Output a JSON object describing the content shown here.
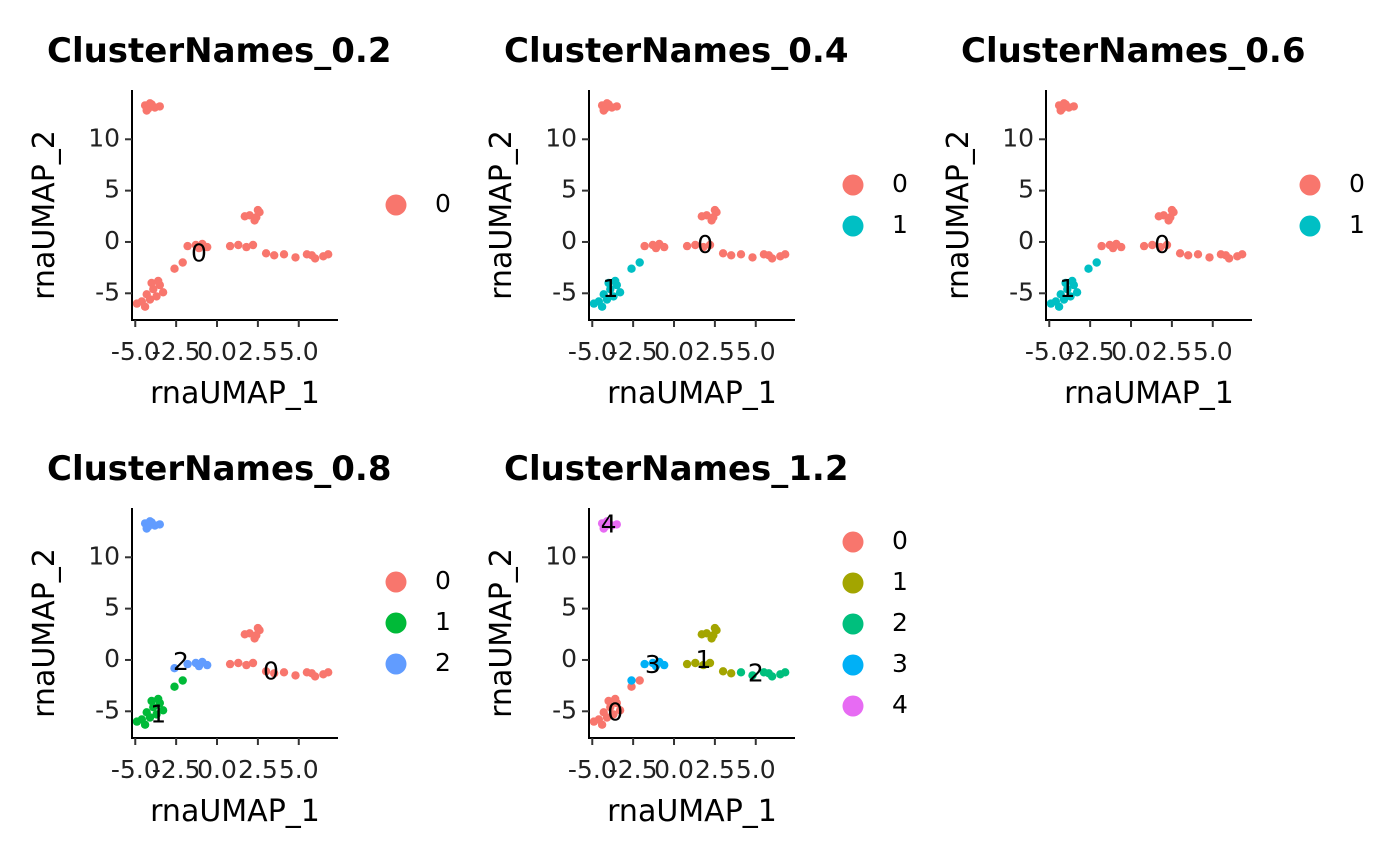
{
  "chart_data": [
    {
      "type": "scatter",
      "title": "ClusterNames_0.2",
      "xlabel": "rnaUMAP_1",
      "ylabel": "rnaUMAP_2",
      "xticks": [
        "-5.0",
        "-2.5",
        "0.0",
        "2.5",
        "5.0"
      ],
      "yticks": [
        "-5",
        "0",
        "5",
        "10"
      ],
      "xlim": [
        -5.2,
        7.4
      ],
      "ylim": [
        -7.6,
        14.8
      ],
      "grid": false,
      "legend": "right",
      "series": [
        {
          "name": "0",
          "color": "#F8766D",
          "label_pos": [
            -1.1,
            -1.2
          ],
          "points": [
            [
              -4.4,
              13.3
            ],
            [
              -4.2,
              13.0
            ],
            [
              -4.0,
              13.4
            ],
            [
              -3.8,
              13.1
            ],
            [
              -4.3,
              12.8
            ],
            [
              -3.5,
              13.2
            ],
            [
              -4.1,
              13.5
            ],
            [
              -4.6,
              -5.8
            ],
            [
              -4.9,
              -6.0
            ],
            [
              -4.4,
              -6.3
            ],
            [
              -4.1,
              -5.6
            ],
            [
              -4.3,
              -5.1
            ],
            [
              -3.7,
              -5.3
            ],
            [
              -3.9,
              -4.6
            ],
            [
              -3.5,
              -4.2
            ],
            [
              -3.3,
              -4.9
            ],
            [
              -4.0,
              -4.0
            ],
            [
              -3.6,
              -3.8
            ],
            [
              -2.6,
              -2.6
            ],
            [
              -2.1,
              -2.0
            ],
            [
              -1.8,
              -0.4
            ],
            [
              -1.3,
              -0.3
            ],
            [
              -1.1,
              -0.6
            ],
            [
              -0.6,
              -0.5
            ],
            [
              -0.9,
              -0.2
            ],
            [
              0.8,
              -0.4
            ],
            [
              1.3,
              -0.3
            ],
            [
              1.8,
              -0.5
            ],
            [
              2.2,
              -0.3
            ],
            [
              2.0,
              2.6
            ],
            [
              2.3,
              2.1
            ],
            [
              2.6,
              2.9
            ],
            [
              2.4,
              2.4
            ],
            [
              1.7,
              2.5
            ],
            [
              2.5,
              3.1
            ],
            [
              3.0,
              -1.1
            ],
            [
              3.5,
              -1.3
            ],
            [
              4.1,
              -1.2
            ],
            [
              4.8,
              -1.5
            ],
            [
              5.5,
              -1.2
            ],
            [
              6.0,
              -1.6
            ],
            [
              6.5,
              -1.4
            ],
            [
              6.8,
              -1.2
            ],
            [
              5.8,
              -1.3
            ]
          ]
        }
      ]
    },
    {
      "type": "scatter",
      "title": "ClusterNames_0.4",
      "xlabel": "rnaUMAP_1",
      "ylabel": "rnaUMAP_2",
      "xticks": [
        "-5.0",
        "-2.5",
        "0.0",
        "2.5",
        "5.0"
      ],
      "yticks": [
        "-5",
        "0",
        "5",
        "10"
      ],
      "xlim": [
        -5.2,
        7.4
      ],
      "ylim": [
        -7.6,
        14.8
      ],
      "grid": false,
      "legend": "right",
      "series": [
        {
          "name": "0",
          "color": "#F8766D",
          "label_pos": [
            1.9,
            -0.4
          ],
          "points": [
            [
              -4.4,
              13.3
            ],
            [
              -4.2,
              13.0
            ],
            [
              -4.0,
              13.4
            ],
            [
              -3.8,
              13.1
            ],
            [
              -4.3,
              12.8
            ],
            [
              -3.5,
              13.2
            ],
            [
              -4.1,
              13.5
            ],
            [
              -1.8,
              -0.4
            ],
            [
              -1.3,
              -0.3
            ],
            [
              -1.1,
              -0.6
            ],
            [
              -0.6,
              -0.5
            ],
            [
              -0.9,
              -0.2
            ],
            [
              0.8,
              -0.4
            ],
            [
              1.3,
              -0.3
            ],
            [
              1.8,
              -0.5
            ],
            [
              2.2,
              -0.3
            ],
            [
              2.0,
              2.6
            ],
            [
              2.3,
              2.1
            ],
            [
              2.6,
              2.9
            ],
            [
              2.4,
              2.4
            ],
            [
              1.7,
              2.5
            ],
            [
              2.5,
              3.1
            ],
            [
              3.0,
              -1.1
            ],
            [
              3.5,
              -1.3
            ],
            [
              4.1,
              -1.2
            ],
            [
              4.8,
              -1.5
            ],
            [
              5.5,
              -1.2
            ],
            [
              6.0,
              -1.6
            ],
            [
              6.5,
              -1.4
            ],
            [
              6.8,
              -1.2
            ],
            [
              5.8,
              -1.3
            ]
          ]
        },
        {
          "name": "1",
          "color": "#00BFC4",
          "label_pos": [
            -3.9,
            -4.7
          ],
          "points": [
            [
              -4.6,
              -5.8
            ],
            [
              -4.9,
              -6.0
            ],
            [
              -4.4,
              -6.3
            ],
            [
              -4.1,
              -5.6
            ],
            [
              -4.3,
              -5.1
            ],
            [
              -3.7,
              -5.3
            ],
            [
              -3.9,
              -4.6
            ],
            [
              -3.5,
              -4.2
            ],
            [
              -3.3,
              -4.9
            ],
            [
              -4.0,
              -4.0
            ],
            [
              -3.6,
              -3.8
            ],
            [
              -2.6,
              -2.6
            ],
            [
              -2.1,
              -2.0
            ]
          ]
        }
      ]
    },
    {
      "type": "scatter",
      "title": "ClusterNames_0.6",
      "xlabel": "rnaUMAP_1",
      "ylabel": "rnaUMAP_2",
      "xticks": [
        "-5.0",
        "-2.5",
        "0.0",
        "2.5",
        "5.0"
      ],
      "yticks": [
        "-5",
        "0",
        "5",
        "10"
      ],
      "xlim": [
        -5.2,
        7.4
      ],
      "ylim": [
        -7.6,
        14.8
      ],
      "grid": false,
      "legend": "right",
      "series": [
        {
          "name": "0",
          "color": "#F8766D",
          "label_pos": [
            1.9,
            -0.4
          ],
          "points": [
            [
              -4.4,
              13.3
            ],
            [
              -4.2,
              13.0
            ],
            [
              -4.0,
              13.4
            ],
            [
              -3.8,
              13.1
            ],
            [
              -4.3,
              12.8
            ],
            [
              -3.5,
              13.2
            ],
            [
              -4.1,
              13.5
            ],
            [
              -1.8,
              -0.4
            ],
            [
              -1.3,
              -0.3
            ],
            [
              -1.1,
              -0.6
            ],
            [
              -0.6,
              -0.5
            ],
            [
              -0.9,
              -0.2
            ],
            [
              0.8,
              -0.4
            ],
            [
              1.3,
              -0.3
            ],
            [
              1.8,
              -0.5
            ],
            [
              2.2,
              -0.3
            ],
            [
              2.0,
              2.6
            ],
            [
              2.3,
              2.1
            ],
            [
              2.6,
              2.9
            ],
            [
              2.4,
              2.4
            ],
            [
              1.7,
              2.5
            ],
            [
              2.5,
              3.1
            ],
            [
              3.0,
              -1.1
            ],
            [
              3.5,
              -1.3
            ],
            [
              4.1,
              -1.2
            ],
            [
              4.8,
              -1.5
            ],
            [
              5.5,
              -1.2
            ],
            [
              6.0,
              -1.6
            ],
            [
              6.5,
              -1.4
            ],
            [
              6.8,
              -1.2
            ],
            [
              5.8,
              -1.3
            ]
          ]
        },
        {
          "name": "1",
          "color": "#00BFC4",
          "label_pos": [
            -3.9,
            -4.7
          ],
          "points": [
            [
              -4.6,
              -5.8
            ],
            [
              -4.9,
              -6.0
            ],
            [
              -4.4,
              -6.3
            ],
            [
              -4.1,
              -5.6
            ],
            [
              -4.3,
              -5.1
            ],
            [
              -3.7,
              -5.3
            ],
            [
              -3.9,
              -4.6
            ],
            [
              -3.5,
              -4.2
            ],
            [
              -3.3,
              -4.9
            ],
            [
              -4.0,
              -4.0
            ],
            [
              -3.6,
              -3.8
            ],
            [
              -2.6,
              -2.6
            ],
            [
              -2.1,
              -2.0
            ]
          ]
        }
      ]
    },
    {
      "type": "scatter",
      "title": "ClusterNames_0.8",
      "xlabel": "rnaUMAP_1",
      "ylabel": "rnaUMAP_2",
      "xticks": [
        "-5.0",
        "-2.5",
        "0.0",
        "2.5",
        "5.0"
      ],
      "yticks": [
        "-5",
        "0",
        "5",
        "10"
      ],
      "xlim": [
        -5.2,
        7.4
      ],
      "ylim": [
        -7.6,
        14.8
      ],
      "grid": false,
      "legend": "right",
      "series": [
        {
          "name": "0",
          "color": "#F8766D",
          "label_pos": [
            3.3,
            -1.2
          ],
          "points": [
            [
              0.8,
              -0.4
            ],
            [
              1.3,
              -0.3
            ],
            [
              1.8,
              -0.5
            ],
            [
              2.2,
              -0.3
            ],
            [
              2.0,
              2.6
            ],
            [
              2.3,
              2.1
            ],
            [
              2.6,
              2.9
            ],
            [
              2.4,
              2.4
            ],
            [
              1.7,
              2.5
            ],
            [
              2.5,
              3.1
            ],
            [
              3.0,
              -1.1
            ],
            [
              3.5,
              -1.3
            ],
            [
              4.1,
              -1.2
            ],
            [
              4.8,
              -1.5
            ],
            [
              5.5,
              -1.2
            ],
            [
              6.0,
              -1.6
            ],
            [
              6.5,
              -1.4
            ],
            [
              6.8,
              -1.2
            ],
            [
              5.8,
              -1.3
            ]
          ]
        },
        {
          "name": "1",
          "color": "#00BA38",
          "label_pos": [
            -3.6,
            -5.4
          ],
          "points": [
            [
              -4.6,
              -5.8
            ],
            [
              -4.9,
              -6.0
            ],
            [
              -4.4,
              -6.3
            ],
            [
              -4.1,
              -5.6
            ],
            [
              -4.3,
              -5.1
            ],
            [
              -3.7,
              -5.3
            ],
            [
              -3.9,
              -4.6
            ],
            [
              -3.5,
              -4.2
            ],
            [
              -3.3,
              -4.9
            ],
            [
              -4.0,
              -4.0
            ],
            [
              -3.6,
              -3.8
            ],
            [
              -2.6,
              -2.6
            ],
            [
              -2.1,
              -2.0
            ]
          ]
        },
        {
          "name": "2",
          "color": "#619CFF",
          "label_pos": [
            -2.2,
            -0.3
          ],
          "points": [
            [
              -4.4,
              13.3
            ],
            [
              -4.2,
              13.0
            ],
            [
              -4.0,
              13.4
            ],
            [
              -3.8,
              13.1
            ],
            [
              -4.3,
              12.8
            ],
            [
              -3.5,
              13.2
            ],
            [
              -4.1,
              13.5
            ],
            [
              -2.6,
              -0.8
            ],
            [
              -1.8,
              -0.4
            ],
            [
              -1.3,
              -0.3
            ],
            [
              -1.1,
              -0.6
            ],
            [
              -0.6,
              -0.5
            ],
            [
              -0.9,
              -0.2
            ]
          ]
        }
      ]
    },
    {
      "type": "scatter",
      "title": "ClusterNames_1.2",
      "xlabel": "rnaUMAP_1",
      "ylabel": "rnaUMAP_2",
      "xticks": [
        "-5.0",
        "-2.5",
        "0.0",
        "2.5",
        "5.0"
      ],
      "yticks": [
        "-5",
        "0",
        "5",
        "10"
      ],
      "xlim": [
        -5.2,
        7.4
      ],
      "ylim": [
        -7.6,
        14.8
      ],
      "grid": false,
      "legend": "right",
      "series": [
        {
          "name": "0",
          "color": "#F8766D",
          "label_pos": [
            -3.6,
            -5.2
          ],
          "points": [
            [
              -4.6,
              -5.8
            ],
            [
              -4.9,
              -6.0
            ],
            [
              -4.4,
              -6.3
            ],
            [
              -4.1,
              -5.6
            ],
            [
              -4.3,
              -5.1
            ],
            [
              -3.7,
              -5.3
            ],
            [
              -3.9,
              -4.6
            ],
            [
              -3.5,
              -4.2
            ],
            [
              -3.3,
              -4.9
            ],
            [
              -4.0,
              -4.0
            ],
            [
              -3.6,
              -3.8
            ],
            [
              -2.6,
              -2.6
            ],
            [
              -2.1,
              -2.0
            ]
          ]
        },
        {
          "name": "1",
          "color": "#A3A500",
          "label_pos": [
            1.8,
            -0.1
          ],
          "points": [
            [
              0.8,
              -0.4
            ],
            [
              1.3,
              -0.3
            ],
            [
              1.8,
              -0.5
            ],
            [
              2.2,
              -0.3
            ],
            [
              2.0,
              2.6
            ],
            [
              2.3,
              2.1
            ],
            [
              2.6,
              2.9
            ],
            [
              2.4,
              2.4
            ],
            [
              1.7,
              2.5
            ],
            [
              2.5,
              3.1
            ],
            [
              3.0,
              -1.1
            ],
            [
              3.5,
              -1.3
            ]
          ]
        },
        {
          "name": "2",
          "color": "#00BF7D",
          "label_pos": [
            5.0,
            -1.4
          ],
          "points": [
            [
              4.1,
              -1.2
            ],
            [
              4.8,
              -1.5
            ],
            [
              5.5,
              -1.2
            ],
            [
              6.0,
              -1.6
            ],
            [
              6.5,
              -1.4
            ],
            [
              6.8,
              -1.2
            ],
            [
              5.8,
              -1.3
            ]
          ]
        },
        {
          "name": "3",
          "color": "#00B0F6",
          "label_pos": [
            -1.3,
            -0.6
          ],
          "points": [
            [
              -2.6,
              -2.0
            ],
            [
              -1.8,
              -0.4
            ],
            [
              -1.3,
              -0.3
            ],
            [
              -1.1,
              -0.6
            ],
            [
              -0.6,
              -0.5
            ],
            [
              -0.9,
              -0.2
            ]
          ]
        },
        {
          "name": "4",
          "color": "#E76BF3",
          "label_pos": [
            -4.0,
            13.1
          ],
          "points": [
            [
              -4.4,
              13.3
            ],
            [
              -4.2,
              13.0
            ],
            [
              -4.0,
              13.4
            ],
            [
              -3.8,
              13.1
            ],
            [
              -4.3,
              12.8
            ],
            [
              -3.5,
              13.2
            ],
            [
              -4.1,
              13.5
            ]
          ]
        }
      ]
    }
  ]
}
